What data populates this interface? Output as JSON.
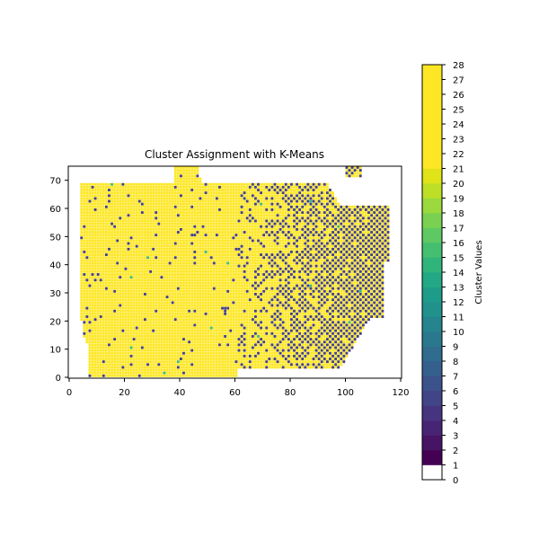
{
  "chart_data": {
    "type": "heatmap",
    "title": "Cluster Assignment with K-Means",
    "xlim": [
      0,
      120
    ],
    "ylim": [
      0,
      75
    ],
    "xticks": [
      0,
      20,
      40,
      60,
      80,
      100,
      120
    ],
    "yticks": [
      0,
      10,
      20,
      30,
      40,
      50,
      60,
      70
    ],
    "xlabel": "",
    "ylabel": "",
    "grid": false,
    "colorbar": {
      "label": "Cluster Values",
      "range": [
        0,
        28
      ],
      "ticks": [
        0,
        1,
        2,
        3,
        4,
        5,
        6,
        7,
        8,
        9,
        10,
        11,
        12,
        13,
        14,
        15,
        16,
        17,
        18,
        19,
        20,
        21,
        22,
        23,
        24,
        25,
        26,
        27,
        28
      ],
      "colormap": "viridis",
      "zero_color": "#ffffff",
      "colors": [
        "#ffffff",
        "#440154",
        "#471365",
        "#482475",
        "#463480",
        "#414487",
        "#3b528b",
        "#355f8d",
        "#2f6c8e",
        "#2a788e",
        "#25848e",
        "#21918c",
        "#1e9c89",
        "#22a884",
        "#2fb47c",
        "#44bf70",
        "#5ec962",
        "#7ad151",
        "#9bd93c",
        "#bddf26",
        "#dfe318",
        "#fde725",
        "#fde725",
        "#fde725",
        "#fde725",
        "#fde725",
        "#fde725",
        "#fde725"
      ]
    },
    "description_values": {
      "dominant_value_left_region": 27,
      "dominant_value_right_region": 7,
      "background_value": 0
    },
    "regions": {
      "yellow_color": "#fde725",
      "purple_color": "#433e85",
      "green_color": "#3cbb75"
    }
  }
}
